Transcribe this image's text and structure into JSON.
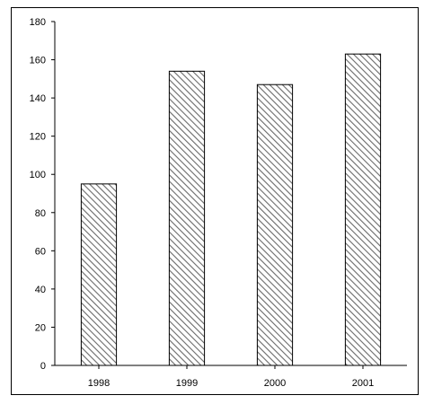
{
  "chart_data": {
    "type": "bar",
    "title": "",
    "xlabel": "",
    "ylabel": "",
    "categories": [
      "1998",
      "1999",
      "2000",
      "2001"
    ],
    "values": [
      95,
      154,
      147,
      163
    ],
    "ylim": [
      0,
      180
    ],
    "yticks": [
      0,
      20,
      40,
      60,
      80,
      100,
      120,
      140,
      160,
      180
    ],
    "ytick_labels": [
      "0",
      "20",
      "40",
      "60",
      "80",
      "100",
      "120",
      "140",
      "160",
      "180"
    ],
    "grid": false,
    "legend": "none",
    "bar_fill": "diagonal hatch",
    "colors": {
      "bar_stroke": "#000000",
      "hatch_line": "#6a6a6a",
      "hatch_background": "#ffffff",
      "axis": "#000000"
    }
  }
}
